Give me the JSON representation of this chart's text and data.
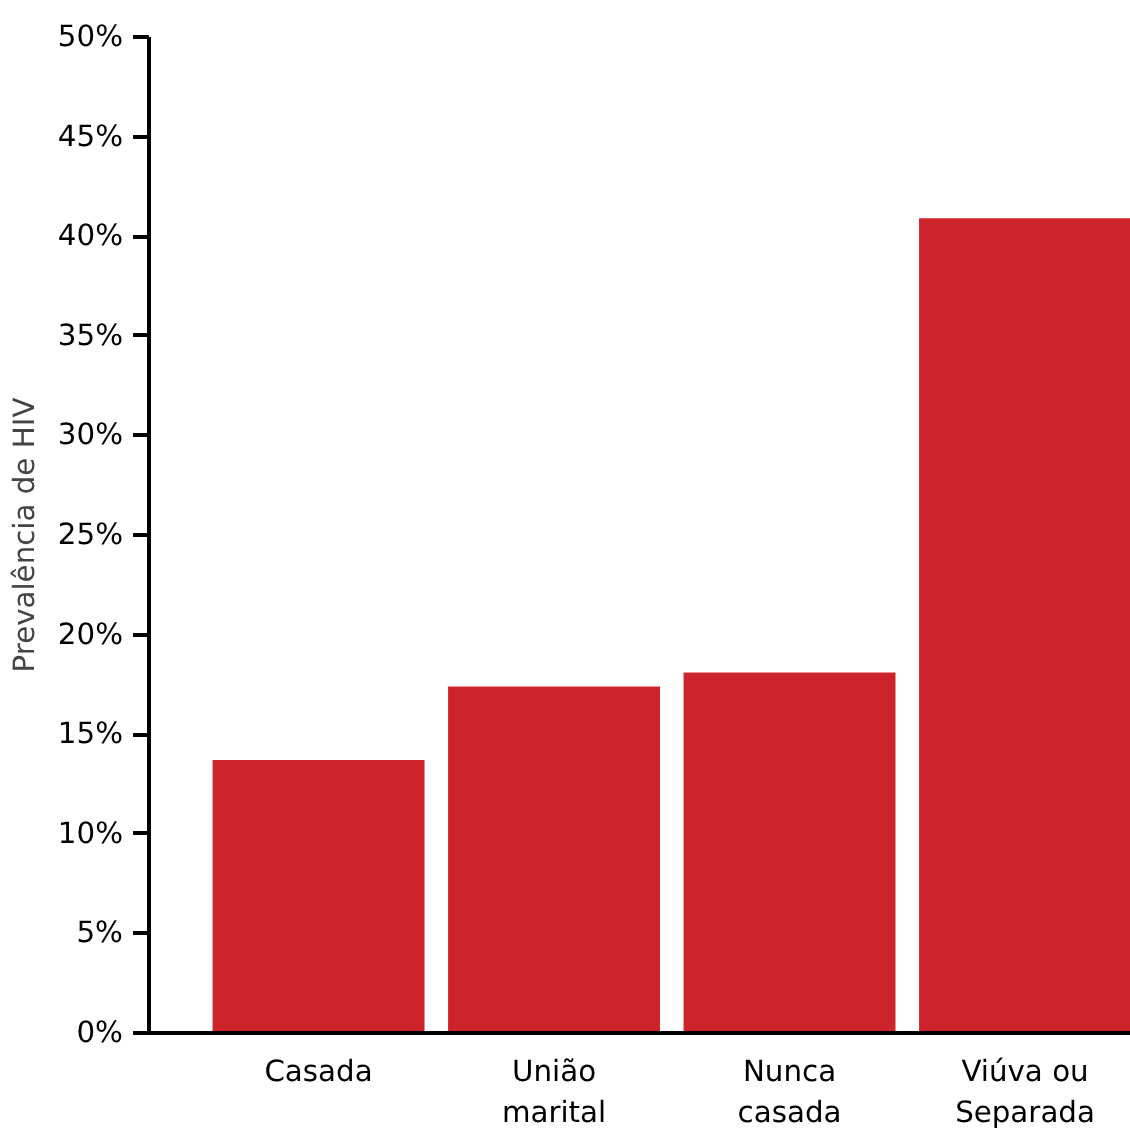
{
  "chart_data": {
    "type": "bar",
    "ylabel": "Prevalência de HIV",
    "categories": [
      "Casada",
      "União\nmarital",
      "Nunca\ncasada",
      "Viúva ou\nSeparada"
    ],
    "values": [
      13.7,
      17.4,
      18.1,
      40.9
    ],
    "color": "#cd242c",
    "ylim": [
      0,
      50
    ],
    "yticks": [
      {
        "value": 0,
        "label": "0%"
      },
      {
        "value": 5,
        "label": "5%"
      },
      {
        "value": 10,
        "label": "10%"
      },
      {
        "value": 15,
        "label": "15%"
      },
      {
        "value": 20,
        "label": "20%"
      },
      {
        "value": 25,
        "label": "25%"
      },
      {
        "value": 30,
        "label": "30%"
      },
      {
        "value": 35,
        "label": "35%"
      },
      {
        "value": 40,
        "label": "40%"
      },
      {
        "value": 45,
        "label": "45%"
      },
      {
        "value": 50,
        "label": "50%"
      }
    ],
    "grid": false
  }
}
